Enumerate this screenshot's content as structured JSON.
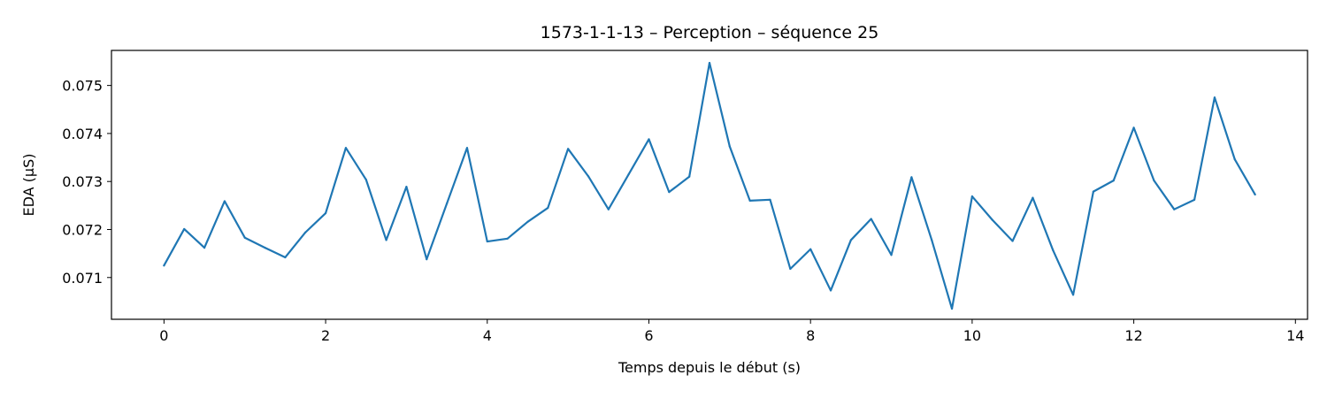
{
  "chart_data": {
    "type": "line",
    "title": "1573-1-1-13 – Perception – séquence 25",
    "xlabel": "Temps depuis le début (s)",
    "ylabel": "EDA (µS)",
    "xlim": [
      -0.65,
      14.15
    ],
    "ylim": [
      0.07013,
      0.07573
    ],
    "xticks": [
      0,
      2,
      4,
      6,
      8,
      10,
      12,
      14
    ],
    "xtick_labels": [
      "0",
      "2",
      "4",
      "6",
      "8",
      "10",
      "12",
      "14"
    ],
    "yticks": [
      0.071,
      0.072,
      0.073,
      0.074,
      0.075
    ],
    "ytick_labels": [
      "0.071",
      "0.072",
      "0.073",
      "0.074",
      "0.075"
    ],
    "grid": false,
    "color": "#1f77b4",
    "series": [
      {
        "x": [
          0,
          0.25,
          0.5,
          0.75,
          1,
          1.25,
          1.5,
          1.75,
          2,
          2.25,
          2.5,
          2.75,
          3,
          3.25,
          3.5,
          3.75,
          4,
          4.25,
          4.5,
          4.75,
          5,
          5.25,
          5.5,
          5.75,
          6,
          6.25,
          6.5,
          6.75,
          7,
          7.25,
          7.5,
          7.75,
          8,
          8.25,
          8.5,
          8.75,
          9,
          9.25,
          9.5,
          9.75,
          10,
          10.25,
          10.5,
          10.75,
          11,
          11.25,
          11.5,
          11.75,
          12,
          12.25,
          12.5,
          12.75,
          13,
          13.25,
          13.5
        ],
        "values": [
          0.07125,
          0.07201,
          0.07162,
          0.07259,
          0.07183,
          0.07162,
          0.07142,
          0.07194,
          0.07234,
          0.0737,
          0.07304,
          0.07178,
          0.07289,
          0.07138,
          0.07254,
          0.0737,
          0.07175,
          0.07181,
          0.07216,
          0.07245,
          0.07368,
          0.07311,
          0.07242,
          0.07315,
          0.07388,
          0.07278,
          0.0731,
          0.07547,
          0.07373,
          0.0726,
          0.07262,
          0.07118,
          0.07159,
          0.07073,
          0.07178,
          0.07222,
          0.07147,
          0.07309,
          0.07178,
          0.07035,
          0.07269,
          0.0722,
          0.07176,
          0.07266,
          0.07157,
          0.07064,
          0.07279,
          0.07302,
          0.07412,
          0.07302,
          0.07242,
          0.07262,
          0.07475,
          0.07346,
          0.07273
        ]
      }
    ]
  }
}
